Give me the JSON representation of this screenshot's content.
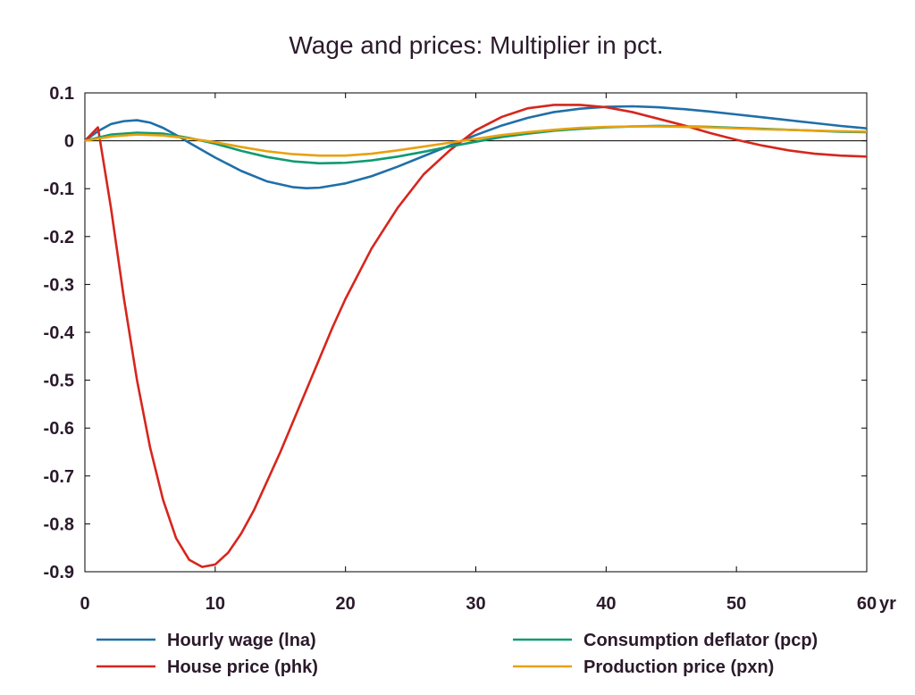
{
  "chart_data": {
    "type": "line",
    "title": "Wage and prices: Multiplier in pct.",
    "xlabel": "",
    "ylabel": "",
    "x_unit_label": "yr",
    "xlim": [
      0,
      60
    ],
    "ylim": [
      -0.9,
      0.1
    ],
    "x_ticks": [
      0,
      10,
      20,
      30,
      40,
      50,
      60
    ],
    "x_tick_labels": [
      "0",
      "10",
      "20",
      "30",
      "40",
      "50",
      "60"
    ],
    "y_ticks": [
      0.1,
      0,
      -0.1,
      -0.2,
      -0.3,
      -0.4,
      -0.5,
      -0.6,
      -0.7,
      -0.8,
      -0.9
    ],
    "y_tick_labels": [
      "0.1",
      "0",
      "-0.1",
      "-0.2",
      "-0.3",
      "-0.4",
      "-0.5",
      "-0.6",
      "-0.7",
      "-0.8",
      "-0.9"
    ],
    "grid": false,
    "legend_position": "bottom",
    "series": [
      {
        "name": "Hourly wage (lna)",
        "color": "#1f6fa8",
        "x": [
          0,
          1,
          2,
          3,
          4,
          5,
          6,
          7,
          8,
          10,
          12,
          14,
          16,
          17,
          18,
          20,
          22,
          24,
          26,
          28,
          30,
          32,
          34,
          36,
          38,
          40,
          42,
          44,
          46,
          48,
          50,
          52,
          54,
          56,
          58,
          60
        ],
        "y": [
          0,
          0.02,
          0.035,
          0.041,
          0.043,
          0.038,
          0.027,
          0.012,
          -0.004,
          -0.035,
          -0.063,
          -0.085,
          -0.097,
          -0.099,
          -0.098,
          -0.089,
          -0.074,
          -0.054,
          -0.032,
          -0.01,
          0.012,
          0.032,
          0.048,
          0.06,
          0.067,
          0.071,
          0.072,
          0.07,
          0.066,
          0.061,
          0.055,
          0.049,
          0.043,
          0.037,
          0.031,
          0.026
        ]
      },
      {
        "name": "House price (phk)",
        "color": "#d6261d",
        "x": [
          0,
          1,
          2,
          3,
          4,
          5,
          6,
          7,
          8,
          9,
          10,
          11,
          12,
          13,
          14,
          15,
          16,
          17,
          18,
          19,
          20,
          22,
          24,
          26,
          28,
          30,
          32,
          34,
          36,
          38,
          40,
          42,
          44,
          46,
          48,
          50,
          52,
          54,
          56,
          58,
          60
        ],
        "y": [
          0,
          0.028,
          -0.14,
          -0.33,
          -0.5,
          -0.64,
          -0.75,
          -0.83,
          -0.875,
          -0.89,
          -0.885,
          -0.86,
          -0.82,
          -0.77,
          -0.71,
          -0.65,
          -0.585,
          -0.52,
          -0.455,
          -0.39,
          -0.33,
          -0.225,
          -0.14,
          -0.07,
          -0.02,
          0.022,
          0.05,
          0.068,
          0.075,
          0.075,
          0.07,
          0.06,
          0.046,
          0.032,
          0.016,
          0.002,
          -0.01,
          -0.02,
          -0.027,
          -0.031,
          -0.033
        ]
      },
      {
        "name": "Consumption deflator (pcp)",
        "color": "#0d9b72",
        "x": [
          0,
          2,
          4,
          6,
          8,
          10,
          12,
          14,
          16,
          18,
          20,
          22,
          24,
          26,
          28,
          30,
          32,
          34,
          36,
          38,
          40,
          42,
          44,
          46,
          48,
          50,
          52,
          54,
          56,
          58,
          60
        ],
        "y": [
          0,
          0.013,
          0.017,
          0.015,
          0.006,
          -0.006,
          -0.021,
          -0.034,
          -0.043,
          -0.047,
          -0.046,
          -0.041,
          -0.033,
          -0.023,
          -0.012,
          -0.002,
          0.008,
          0.015,
          0.021,
          0.025,
          0.028,
          0.03,
          0.031,
          0.03,
          0.029,
          0.027,
          0.025,
          0.023,
          0.021,
          0.019,
          0.018
        ]
      },
      {
        "name": "Production price (pxn)",
        "color": "#e8a10d",
        "x": [
          0,
          2,
          4,
          6,
          8,
          10,
          12,
          14,
          16,
          18,
          20,
          22,
          24,
          26,
          28,
          30,
          32,
          34,
          36,
          38,
          40,
          42,
          44,
          46,
          48,
          50,
          52,
          54,
          56,
          58,
          60
        ],
        "y": [
          0,
          0.009,
          0.013,
          0.011,
          0.005,
          -0.003,
          -0.013,
          -0.022,
          -0.028,
          -0.031,
          -0.031,
          -0.027,
          -0.02,
          -0.012,
          -0.004,
          0.004,
          0.012,
          0.018,
          0.023,
          0.027,
          0.029,
          0.03,
          0.03,
          0.029,
          0.028,
          0.026,
          0.024,
          0.023,
          0.021,
          0.02,
          0.019
        ]
      }
    ]
  }
}
